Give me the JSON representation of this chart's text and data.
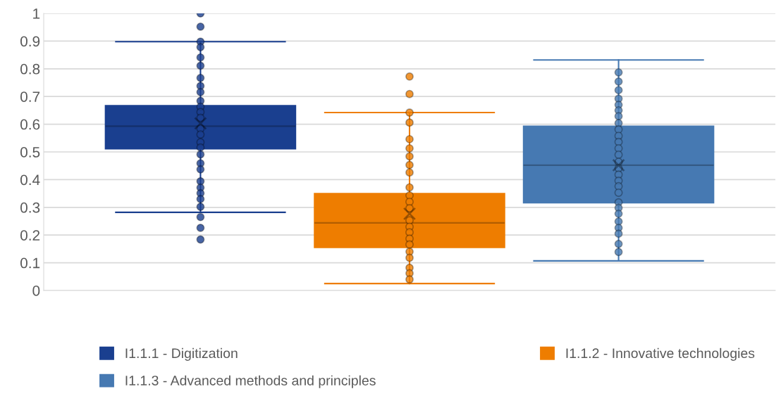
{
  "chart_data": {
    "type": "box",
    "categories": [
      null
    ],
    "ylim": [
      0,
      1
    ],
    "yticks": [
      0,
      0.1,
      0.2,
      0.3,
      0.4,
      0.5,
      0.6,
      0.7,
      0.8,
      0.9,
      1
    ],
    "grid": "y",
    "legend": "bottom",
    "tick_labels": "y",
    "marker": "circle",
    "series": [
      {
        "name": "I1.1.1 - Digitization",
        "color": "#1a3f8f",
        "boxes": [
          {
            "low": 0.282,
            "q1": 0.511,
            "median": 0.593,
            "q3": 0.667,
            "high": 0.898,
            "mean": 0.603,
            "outliers": [
              1.0,
              0.952,
              0.898,
              0.878,
              0.841,
              0.811,
              0.767,
              0.738,
              0.716,
              0.684,
              0.663,
              0.644,
              0.623,
              0.584,
              0.563,
              0.535,
              0.516,
              0.491,
              0.459,
              0.437,
              0.394,
              0.371,
              0.351,
              0.33,
              0.302,
              0.265,
              0.226,
              0.184
            ]
          }
        ]
      },
      {
        "name": "I1.1.2 - Innovative technologies",
        "color": "#ee7d00",
        "boxes": [
          {
            "low": 0.025,
            "q1": 0.155,
            "median": 0.244,
            "q3": 0.35,
            "high": 0.642,
            "mean": 0.277,
            "outliers": [
              0.772,
              0.709,
              0.642,
              0.606,
              0.546,
              0.513,
              0.484,
              0.453,
              0.426,
              0.372,
              0.343,
              0.32,
              0.297,
              0.253,
              0.23,
              0.21,
              0.187,
              0.166,
              0.14,
              0.118,
              0.082,
              0.062,
              0.04
            ]
          }
        ]
      },
      {
        "name": "I1.1.3 - Advanced methods and principles",
        "color": "#4679b2",
        "boxes": [
          {
            "low": 0.107,
            "q1": 0.316,
            "median": 0.452,
            "q3": 0.593,
            "high": 0.832,
            "mean": 0.452,
            "outliers": [
              0.787,
              0.754,
              0.723,
              0.692,
              0.67,
              0.65,
              0.629,
              0.604,
              0.581,
              0.558,
              0.536,
              0.513,
              0.49,
              0.464,
              0.441,
              0.418,
              0.396,
              0.376,
              0.353,
              0.318,
              0.298,
              0.277,
              0.249,
              0.226,
              0.205,
              0.168,
              0.139
            ]
          }
        ]
      }
    ]
  }
}
